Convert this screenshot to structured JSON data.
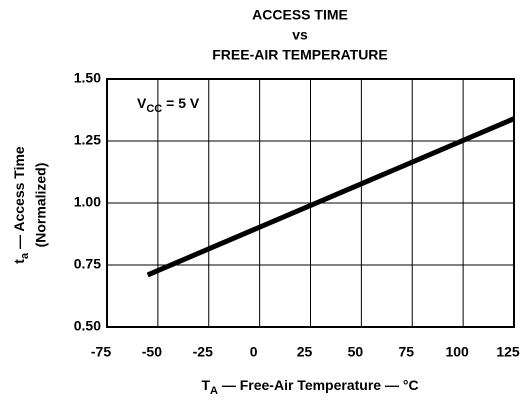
{
  "chart_data": {
    "type": "line",
    "title": [
      "ACCESS TIME",
      "vs",
      "FREE-AIR TEMPERATURE"
    ],
    "x_label": {
      "symbol": "T",
      "sub": "A",
      "text": " — Free-Air Temperature — °C"
    },
    "y_label": {
      "symbol": "t",
      "sub": "a",
      "text": " — Access Time",
      "line2": "(Normalized)"
    },
    "annotation": {
      "symbol": "V",
      "sub": "CC",
      "text": " = 5 V"
    },
    "x": [
      -55,
      125
    ],
    "series": [
      {
        "color": "#000000",
        "values": [
          0.71,
          1.34
        ]
      }
    ],
    "xlim": [
      -75,
      125
    ],
    "xticks": [
      -75,
      -50,
      -25,
      0,
      25,
      50,
      75,
      100,
      125
    ],
    "ylim": [
      0.5,
      1.5
    ],
    "yticks": [
      {
        "value": 0.5,
        "label": "0.50"
      },
      {
        "value": 0.75,
        "label": "0.75"
      },
      {
        "value": 1.0,
        "label": "1.00"
      },
      {
        "value": 1.25,
        "label": "1.25"
      },
      {
        "value": 1.5,
        "label": "1.50"
      }
    ],
    "grid": true
  }
}
